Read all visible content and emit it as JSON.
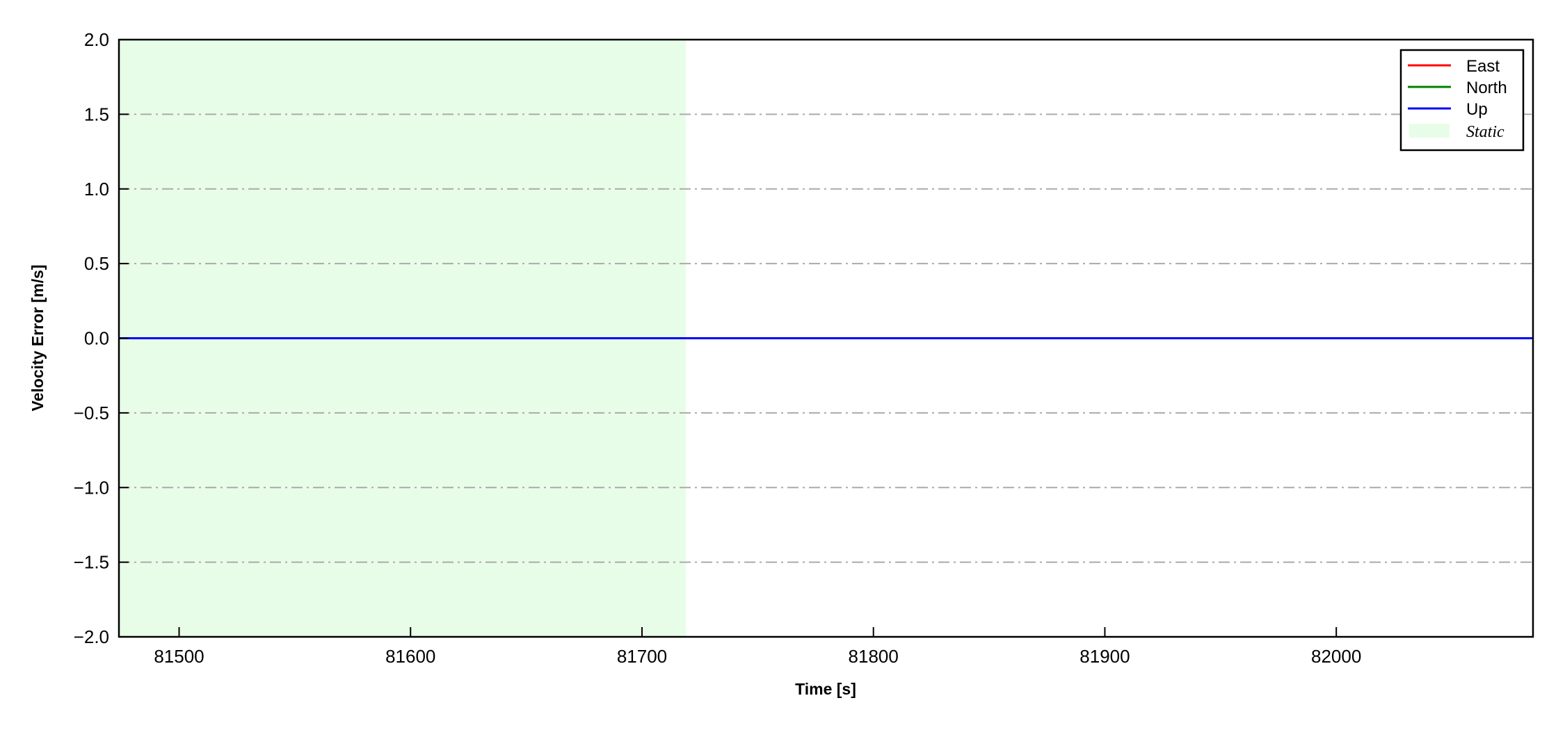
{
  "chart_data": {
    "type": "line",
    "title": "",
    "xlabel": "Time [s]",
    "ylabel": "Velocity Error [m/s]",
    "xlim": [
      81474,
      82085
    ],
    "ylim": [
      -2.0,
      2.0
    ],
    "xticks": [
      81500,
      81600,
      81700,
      81800,
      81900,
      82000
    ],
    "xtick_labels": [
      "81500",
      "81600",
      "81700",
      "81800",
      "81900",
      "82000"
    ],
    "yticks": [
      -2.0,
      -1.5,
      -1.0,
      -0.5,
      0.0,
      0.5,
      1.0,
      1.5,
      2.0
    ],
    "ytick_labels": [
      "−2.0",
      "−1.5",
      "−1.0",
      "−0.5",
      "0.0",
      "0.5",
      "1.0",
      "1.5",
      "2.0"
    ],
    "grid": {
      "axis": "y",
      "style": "dash-dot",
      "color": "#aaaaaa"
    },
    "series": [
      {
        "name": "East",
        "color": "#ff0000",
        "x": [
          81474,
          82085
        ],
        "y": [
          0.0,
          0.0
        ]
      },
      {
        "name": "North",
        "color": "#008000",
        "x": [
          81474,
          82085
        ],
        "y": [
          0.0,
          0.0
        ]
      },
      {
        "name": "Up",
        "color": "#0000ff",
        "x": [
          81474,
          82085
        ],
        "y": [
          0.0,
          0.0
        ]
      }
    ],
    "spans": [
      {
        "name": "Static",
        "x_start": 81474,
        "x_end": 81719,
        "color": "#e8fde8"
      }
    ],
    "legend": {
      "placement": "top-right",
      "entries": [
        "East",
        "North",
        "Up",
        "Static"
      ]
    }
  }
}
